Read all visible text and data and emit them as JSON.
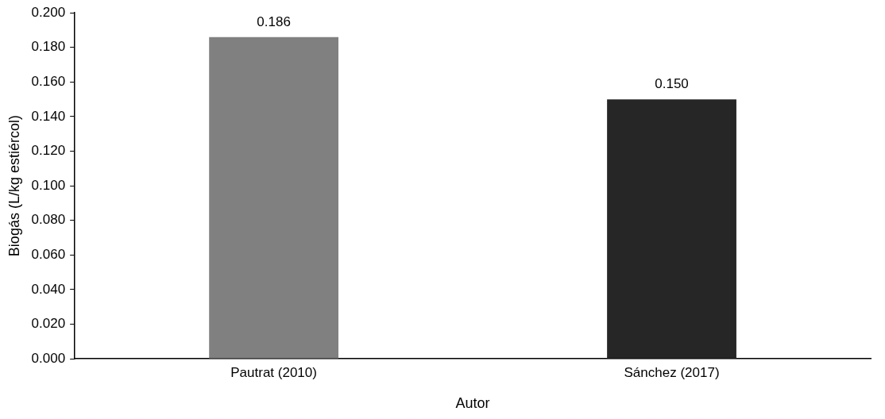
{
  "chart_data": {
    "type": "bar",
    "xlabel": "Autor",
    "ylabel": "Biogás (L/kg estiércol)",
    "categories": [
      "Pautrat (2010)",
      "Sánchez (2017)"
    ],
    "values": [
      0.186,
      0.15
    ],
    "colors": [
      "#808080",
      "#262626"
    ],
    "value_labels": [
      "0.186",
      "0.150"
    ],
    "ylim": [
      0,
      0.2
    ],
    "yticks": [
      {
        "value": 0,
        "label": "0.000"
      },
      {
        "value": 0.02,
        "label": "0.020"
      },
      {
        "value": 0.04,
        "label": "0.040"
      },
      {
        "value": 0.06,
        "label": "0.060"
      },
      {
        "value": 0.08,
        "label": "0.080"
      },
      {
        "value": 0.1,
        "label": "0.100"
      },
      {
        "value": 0.12,
        "label": "0.120"
      },
      {
        "value": 0.14,
        "label": "0.140"
      },
      {
        "value": 0.16,
        "label": "0.160"
      },
      {
        "value": 0.18,
        "label": "0.180"
      },
      {
        "value": 0.2,
        "label": "0.200"
      }
    ],
    "grid": false,
    "legend": false
  }
}
